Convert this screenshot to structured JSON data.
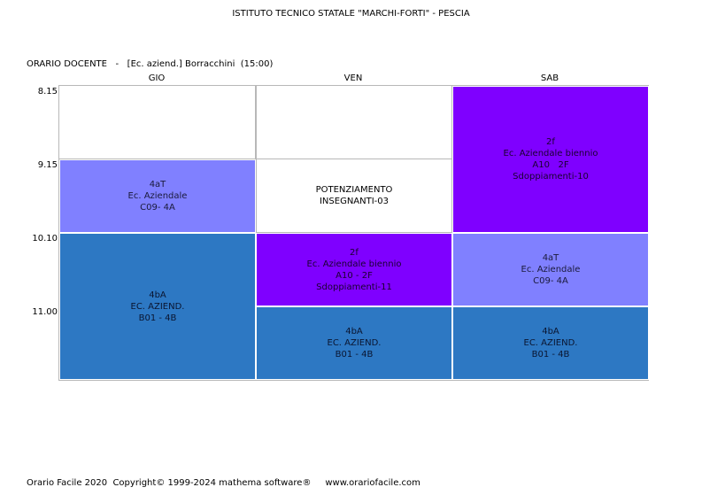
{
  "header": {
    "school": "ISTITUTO TECNICO STATALE \"MARCHI-FORTI\" - PESCIA",
    "teacher_line": "ORARIO DOCENTE   -   [Ec. aziend.] Borracchini  (15:00)"
  },
  "days": [
    "GIO",
    "VEN",
    "SAB"
  ],
  "times": [
    "8.15",
    "9.15",
    "10.10",
    "11.00"
  ],
  "cells": {
    "gio_2": {
      "l1": "4aT",
      "l2": "Ec. Aziendale",
      "l3": "C09- 4A"
    },
    "gio_3": {
      "l1": "4bA",
      "l2": "EC. AZIEND.",
      "l3": "B01 - 4B"
    },
    "ven_2": {
      "l1": "POTENZIAMENTO",
      "l2": "INSEGNANTI-03"
    },
    "ven_3": {
      "l1": "2f",
      "l2": "Ec. Aziendale biennio",
      "l3": "A10 - 2F",
      "l4": "Sdoppiamenti-11"
    },
    "ven_4": {
      "l1": "4bA",
      "l2": "EC. AZIEND.",
      "l3": "B01 - 4B"
    },
    "sab_1": {
      "l1": "2f",
      "l2": "Ec. Aziendale biennio",
      "l3": "A10   2F",
      "l4": "Sdoppiamenti-10"
    },
    "sab_3": {
      "l1": "4aT",
      "l2": "Ec. Aziendale",
      "l3": "C09- 4A"
    },
    "sab_4": {
      "l1": "4bA",
      "l2": "EC. AZIEND.",
      "l3": "B01 - 4B"
    }
  },
  "colors": {
    "light_lesson": "#8080ff",
    "blue_lesson": "#2d78c3",
    "purple_lesson": "#7f00ff"
  },
  "footer": "Orario Facile 2020  Copyright© 1999-2024 mathema software®     www.orariofacile.com"
}
